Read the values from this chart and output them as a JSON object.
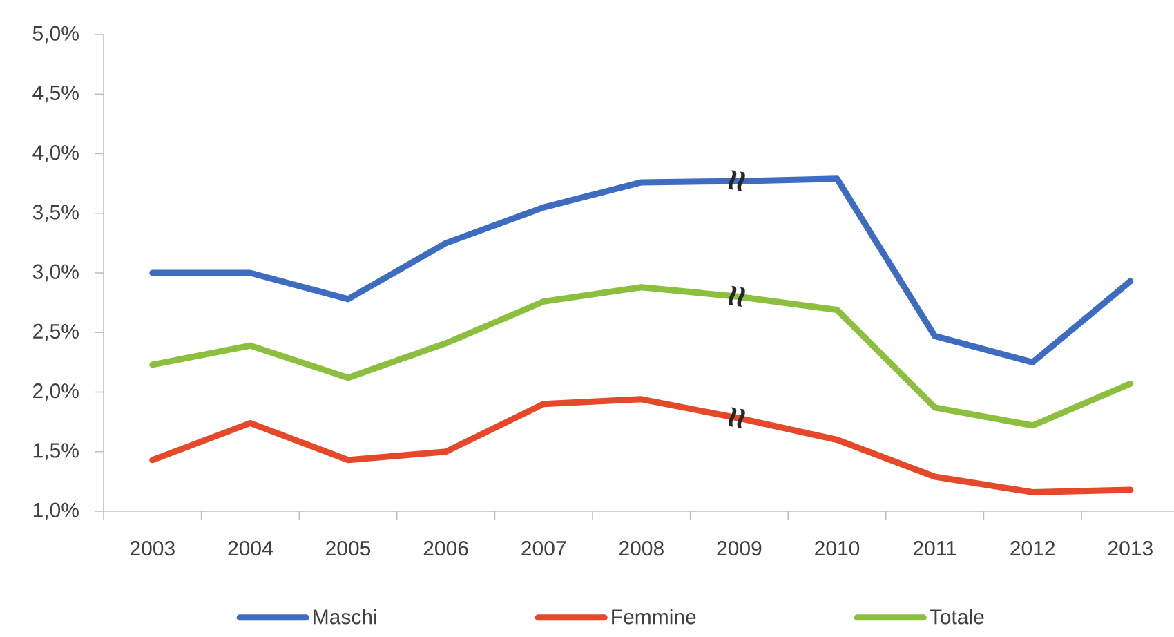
{
  "chart_data": {
    "type": "line",
    "categories": [
      "2003",
      "2004",
      "2005",
      "2006",
      "2007",
      "2008",
      "2009",
      "2010",
      "2011",
      "2012",
      "2013"
    ],
    "series": [
      {
        "name": "Maschi",
        "color": "#3d6cc0",
        "values": [
          3.0,
          3.0,
          2.78,
          3.25,
          3.55,
          3.76,
          3.77,
          3.79,
          2.47,
          2.25,
          2.93
        ]
      },
      {
        "name": "Femmine",
        "color": "#e5492a",
        "values": [
          1.43,
          1.74,
          1.43,
          1.5,
          1.9,
          1.94,
          1.78,
          1.6,
          1.29,
          1.16,
          1.18
        ]
      },
      {
        "name": "Totale",
        "color": "#8dbf3e",
        "values": [
          2.23,
          2.39,
          2.12,
          2.41,
          2.76,
          2.88,
          2.8,
          2.69,
          1.87,
          1.72,
          2.07
        ]
      }
    ],
    "ylim": [
      1.0,
      5.0
    ],
    "yticks": [
      {
        "value": 1.0,
        "label": "1,0%"
      },
      {
        "value": 1.5,
        "label": "1,5%"
      },
      {
        "value": 2.0,
        "label": "2,0%"
      },
      {
        "value": 2.5,
        "label": "2,5%"
      },
      {
        "value": 3.0,
        "label": "3,0%"
      },
      {
        "value": 3.5,
        "label": "3,5%"
      },
      {
        "value": 4.0,
        "label": "4,0%"
      },
      {
        "value": 4.5,
        "label": "4,5%"
      },
      {
        "value": 5.0,
        "label": "5,0%"
      }
    ],
    "annotations": [
      {
        "text": "≈",
        "x": "2009",
        "y": 3.77
      },
      {
        "text": "≈",
        "x": "2009",
        "y": 2.8
      },
      {
        "text": "≈",
        "x": "2009",
        "y": 1.78
      }
    ],
    "legend": "bottom"
  }
}
